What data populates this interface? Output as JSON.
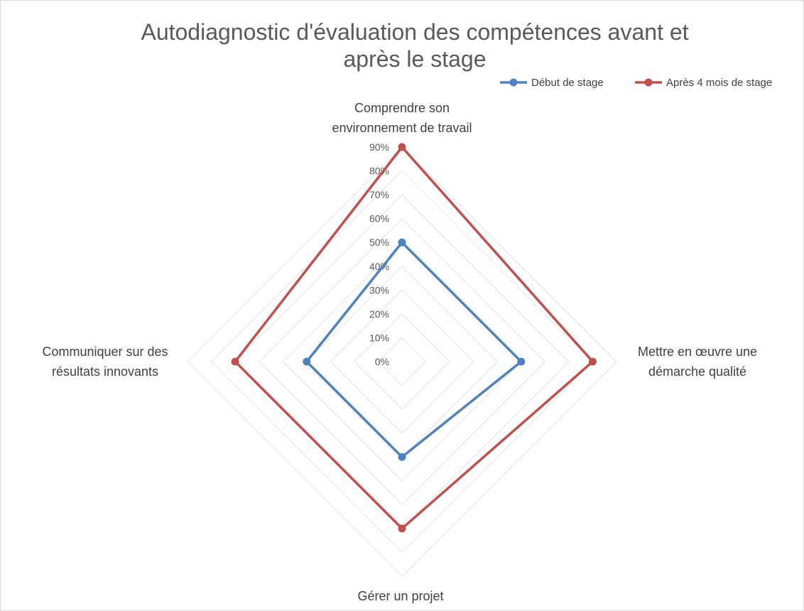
{
  "chart_data": {
    "type": "radar",
    "title_lines": [
      "Autodiagnostic d'évaluation des compétences avant et",
      "après le stage"
    ],
    "categories": [
      [
        "Comprendre son",
        "environnement de travail"
      ],
      [
        "Mettre en œuvre une",
        "démarche qualité"
      ],
      [
        "Gérer un projet"
      ],
      [
        "Communiquer sur des",
        "résultats innovants"
      ]
    ],
    "r_ticks": [
      "0%",
      "10%",
      "20%",
      "30%",
      "40%",
      "50%",
      "60%",
      "70%",
      "80%",
      "90%"
    ],
    "r_max": 0.9,
    "r_step": 0.1,
    "grid": true,
    "legend_position": "top-right",
    "series": [
      {
        "name": "Début de stage",
        "color": "#4f81bd",
        "values": [
          0.5,
          0.5,
          0.4,
          0.4
        ]
      },
      {
        "name": "Après 4 mois de stage",
        "color": "#c0504d",
        "values": [
          0.9,
          0.8,
          0.7,
          0.7
        ]
      }
    ]
  }
}
